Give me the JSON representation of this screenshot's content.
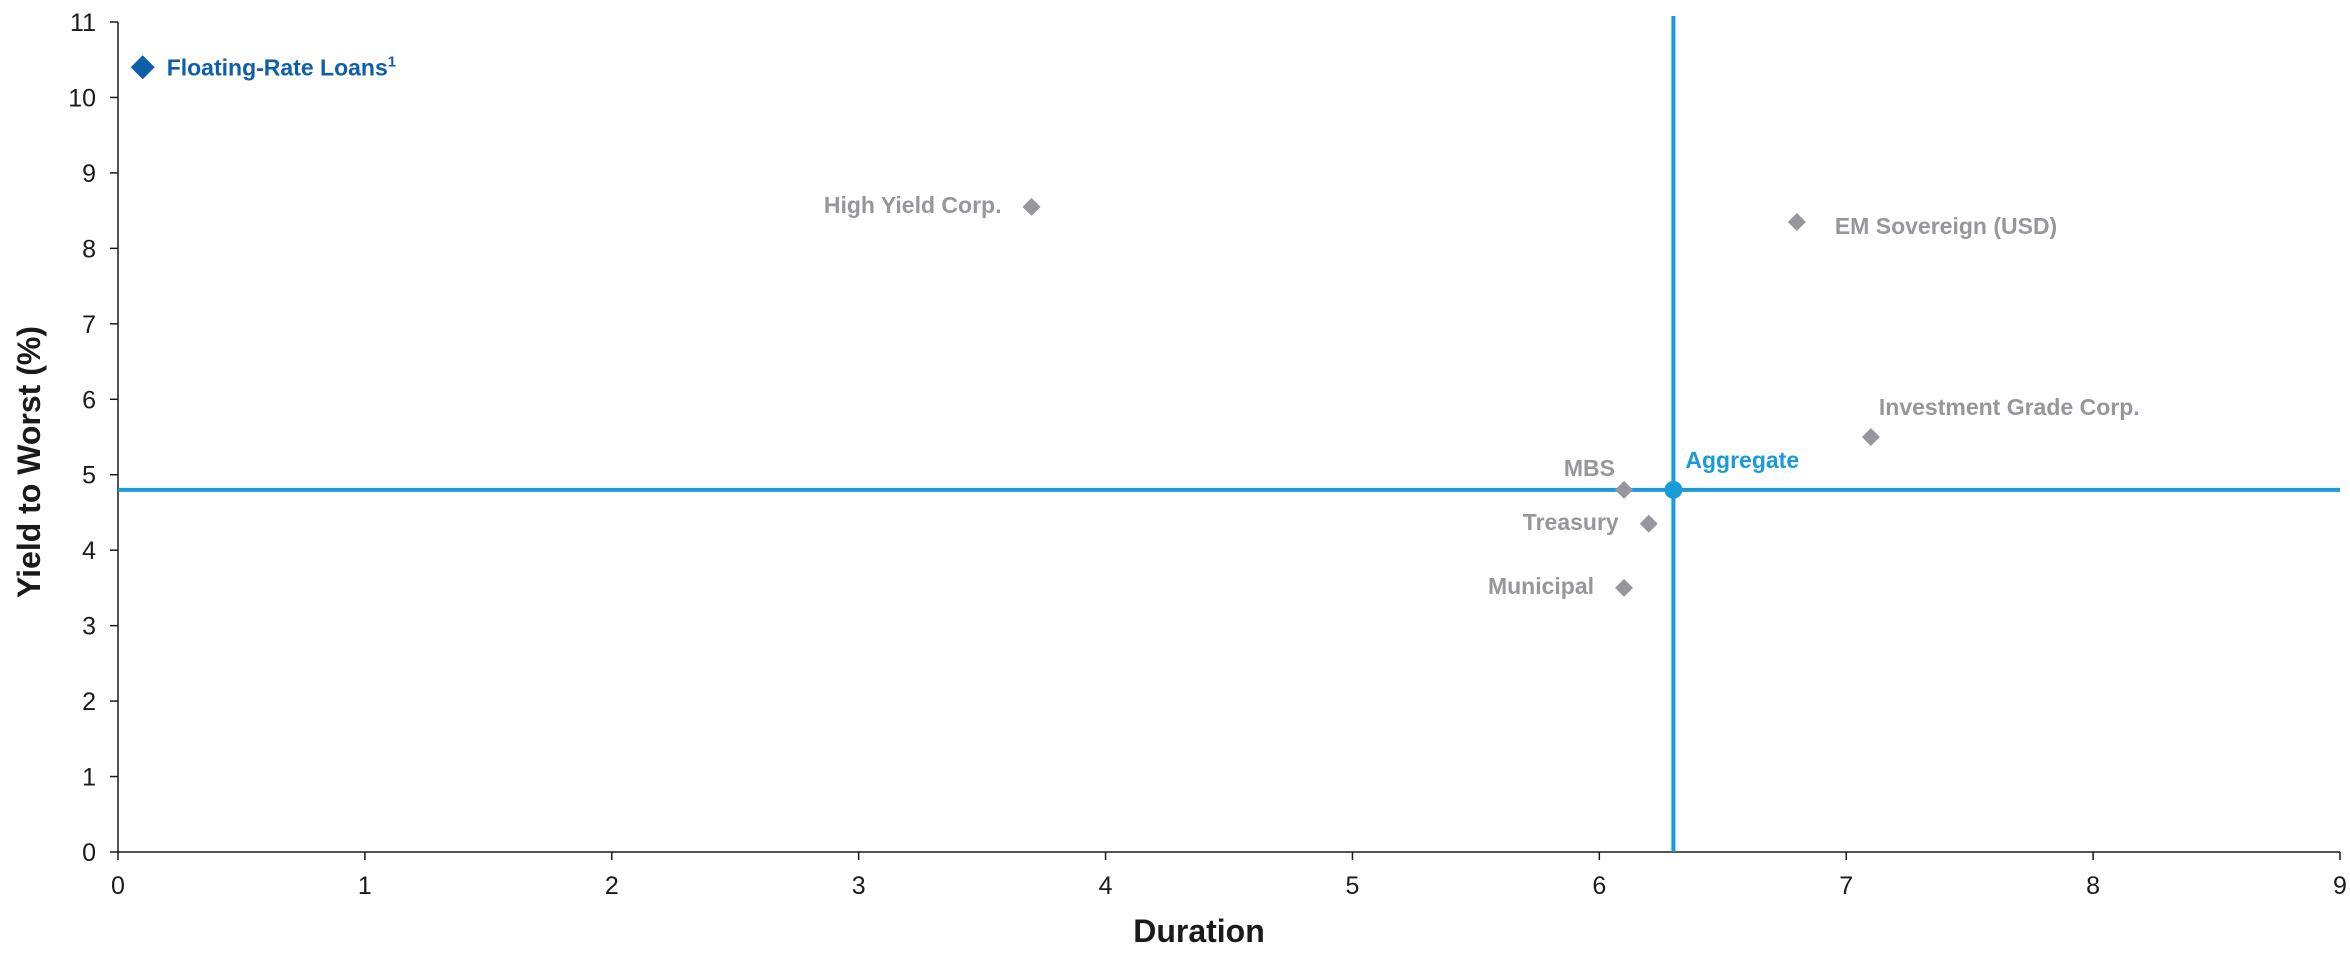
{
  "chart_data": {
    "type": "scatter",
    "title": "",
    "xlabel": "Duration",
    "ylabel": "Yield to Worst (%)",
    "xlim": [
      0,
      9
    ],
    "ylim": [
      0,
      11
    ],
    "x_ticks": [
      "0",
      "1",
      "2",
      "3",
      "4",
      "5",
      "6",
      "7",
      "8",
      "9"
    ],
    "y_ticks": [
      "0",
      "1",
      "2",
      "3",
      "4",
      "5",
      "6",
      "7",
      "8",
      "9",
      "10",
      "11"
    ],
    "grid": false,
    "reference_lines": {
      "x": 6.3,
      "y": 4.8,
      "color": "#1a9bd7"
    },
    "points": [
      {
        "label": "Floating-Rate Loans",
        "superscript": "1",
        "x": 0.1,
        "y": 10.4,
        "marker": "diamond",
        "color": "#0e5fa8",
        "highlight": true,
        "label_pos": "right"
      },
      {
        "label": "High Yield Corp.",
        "x": 3.7,
        "y": 8.55,
        "marker": "diamond",
        "color": "#96969c",
        "label_pos": "left"
      },
      {
        "label": "EM Sovereign (USD)",
        "x": 6.8,
        "y": 8.35,
        "marker": "diamond",
        "color": "#96969c",
        "label_pos": "right-below"
      },
      {
        "label": "Investment Grade Corp.",
        "x": 7.1,
        "y": 5.5,
        "marker": "diamond",
        "color": "#96969c",
        "label_pos": "above-right"
      },
      {
        "label": "Aggregate",
        "x": 6.3,
        "y": 4.8,
        "marker": "circle",
        "color": "#1a9bd7",
        "label_pos": "above-right"
      },
      {
        "label": "MBS",
        "x": 6.1,
        "y": 4.8,
        "marker": "diamond",
        "color": "#96969c",
        "label_pos": "above-left"
      },
      {
        "label": "Treasury",
        "x": 6.2,
        "y": 4.35,
        "marker": "diamond",
        "color": "#96969c",
        "label_pos": "left"
      },
      {
        "label": "Municipal",
        "x": 6.1,
        "y": 3.5,
        "marker": "diamond",
        "color": "#96969c",
        "label_pos": "left"
      }
    ]
  }
}
